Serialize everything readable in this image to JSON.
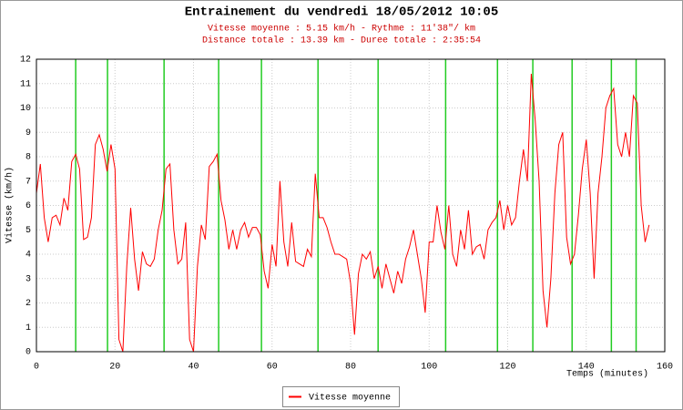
{
  "chart_data": {
    "type": "line",
    "title": "Entrainement du vendredi 18/05/2012 10:05",
    "subtitle": [
      "Vitesse moyenne : 5.15 km/h - Rythme : 11'38\"/ km",
      "Distance totale : 13.39 km - Duree totale : 2:35:54"
    ],
    "x_label": "Temps (minutes)",
    "y_label": "Vitesse (km/h)",
    "xlim": [
      0,
      160
    ],
    "xticks": [
      0,
      20,
      40,
      60,
      80,
      100,
      120,
      140,
      160
    ],
    "ylim": [
      0,
      12
    ],
    "yticks": [
      0,
      1,
      2,
      3,
      4,
      5,
      6,
      7,
      8,
      9,
      10,
      11,
      12
    ],
    "grid": true,
    "markers": [
      10.0,
      18.1,
      32.5,
      46.4,
      57.3,
      71.7,
      87.0,
      104.2,
      117.4,
      126.4,
      136.4,
      146.4,
      152.7
    ],
    "marker_color": "#22cc22",
    "x": [
      0,
      1,
      2,
      3,
      4,
      5,
      6,
      7,
      8,
      9,
      10,
      11,
      12,
      13,
      14,
      15,
      16,
      17,
      18,
      19,
      20,
      21,
      22,
      23,
      24,
      25,
      26,
      27,
      28,
      29,
      30,
      31,
      32,
      33,
      34,
      35,
      36,
      37,
      38,
      39,
      40,
      41,
      42,
      43,
      44,
      45,
      46,
      47,
      48,
      49,
      50,
      51,
      52,
      53,
      54,
      55,
      56,
      57,
      58,
      59,
      60,
      61,
      62,
      63,
      64,
      65,
      66,
      67,
      68,
      69,
      70,
      71,
      72,
      73,
      74,
      75,
      76,
      77,
      78,
      79,
      80,
      81,
      82,
      83,
      84,
      85,
      86,
      87,
      88,
      89,
      90,
      91,
      92,
      93,
      94,
      95,
      96,
      97,
      98,
      99,
      100,
      101,
      102,
      103,
      104,
      105,
      106,
      107,
      108,
      109,
      110,
      111,
      112,
      113,
      114,
      115,
      116,
      117,
      118,
      119,
      120,
      121,
      122,
      123,
      124,
      125,
      126,
      127,
      128,
      129,
      130,
      131,
      132,
      133,
      134,
      135,
      136,
      137,
      138,
      139,
      140,
      141,
      142,
      143,
      144,
      145,
      146,
      147,
      148,
      149,
      150,
      151,
      152,
      153,
      154,
      155,
      156
    ],
    "series": [
      {
        "name": "Vitesse moyenne",
        "color": "#ff0000",
        "values": [
          6.5,
          7.7,
          5.5,
          4.5,
          5.5,
          5.6,
          5.2,
          6.3,
          5.8,
          7.8,
          8.1,
          7.5,
          4.6,
          4.7,
          5.5,
          8.5,
          8.9,
          8.3,
          7.4,
          8.5,
          7.5,
          0.5,
          0,
          3.5,
          5.9,
          3.8,
          2.5,
          4.1,
          3.6,
          3.5,
          3.8,
          5.0,
          5.8,
          7.5,
          7.7,
          5.0,
          3.6,
          3.8,
          5.3,
          0.5,
          0,
          3.5,
          5.2,
          4.6,
          7.6,
          7.8,
          8.1,
          6.2,
          5.4,
          4.2,
          5.0,
          4.2,
          5.0,
          5.3,
          4.7,
          5.1,
          5.1,
          4.8,
          3.3,
          2.6,
          4.4,
          3.5,
          7.0,
          4.5,
          3.5,
          5.3,
          3.7,
          3.6,
          3.5,
          4.2,
          3.9,
          7.3,
          5.5,
          5.5,
          5.1,
          4.5,
          4.0,
          4.0,
          3.9,
          3.8,
          2.8,
          0.7,
          3.2,
          4.0,
          3.8,
          4.1,
          3.0,
          3.5,
          2.6,
          3.6,
          3.0,
          2.4,
          3.3,
          2.8,
          3.8,
          4.3,
          5.0,
          4.0,
          3.0,
          1.6,
          4.5,
          4.5,
          6.0,
          4.9,
          4.2,
          6.0,
          4.0,
          3.5,
          5.0,
          4.2,
          5.8,
          4.0,
          4.3,
          4.4,
          3.8,
          5.0,
          5.3,
          5.5,
          6.2,
          5.0,
          6.0,
          5.2,
          5.5,
          7.0,
          8.3,
          7.0,
          11.4,
          9.5,
          7.0,
          2.5,
          1.0,
          3.0,
          6.5,
          8.5,
          9.0,
          4.7,
          3.6,
          4.0,
          5.6,
          7.5,
          8.7,
          6.5,
          3.0,
          6.5,
          8.0,
          10.0,
          10.5,
          10.8,
          8.5,
          8.0,
          9.0,
          8.0,
          10.5,
          10.2,
          6.0,
          4.5,
          5.2
        ]
      }
    ]
  }
}
